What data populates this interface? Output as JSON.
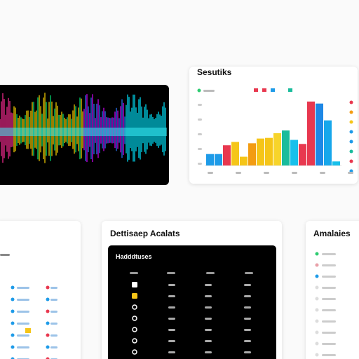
{
  "header_panel": {
    "title": "Sesutiks"
  },
  "bar_chart": {
    "type": "bar",
    "values": [
      17,
      17,
      30,
      35,
      13,
      33,
      40,
      41,
      48,
      52,
      38,
      32,
      95,
      92,
      67,
      6
    ],
    "colors": [
      "#1e9be8",
      "#1e9be8",
      "#e8384f",
      "#f5c518",
      "#f5c518",
      "#f39c12",
      "#f5c518",
      "#f5c518",
      "#f7d42a",
      "#1abc9c",
      "#17c0eb",
      "#e8384f",
      "#e8384f",
      "#1e88e5",
      "#17a7eb",
      "#17c0eb"
    ],
    "ylim": [
      0,
      100
    ]
  },
  "table_panel": {
    "title": "Dettisaep Acalats",
    "header": "Hadddtuses"
  },
  "side_panel": {
    "title": "Amalaies"
  }
}
